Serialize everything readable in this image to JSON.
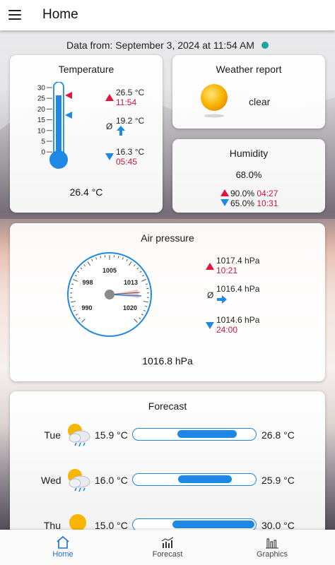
{
  "appbar": {
    "title": "Home",
    "menu_icon": "menu-icon"
  },
  "data_from": {
    "text": "Data from: September 3, 2024 at 11:54 AM",
    "status_color": "#1aa5a0"
  },
  "temperature": {
    "title": "Temperature",
    "current": "26.4 °C",
    "current_value": 26.4,
    "scale_ticks": [
      "30",
      "25",
      "20",
      "15",
      "10",
      "5",
      "0"
    ],
    "high": {
      "value": "26.5 °C",
      "time": "11:54"
    },
    "avg": {
      "symbol": "Ø",
      "value": "19.2 °C"
    },
    "low": {
      "value": "16.3 °C",
      "time": "05:45"
    }
  },
  "weather": {
    "title": "Weather report",
    "condition": "clear",
    "icon": "sun-icon"
  },
  "humidity": {
    "title": "Humidity",
    "current": "68.0%",
    "high": {
      "value": "90.0%",
      "time": "04:27"
    },
    "low": {
      "value": "65.0%",
      "time": "10:31"
    }
  },
  "pressure": {
    "title": "Air pressure",
    "current": "1016.8 hPa",
    "gauge_labels": {
      "top": "1005",
      "left": "998",
      "right": "1013",
      "bottom_left": "990",
      "bottom_right": "1020"
    },
    "high": {
      "value": "1017.4 hPa",
      "time": "10:21"
    },
    "avg": {
      "symbol": "Ø",
      "value": "1016.4 hPa"
    },
    "low": {
      "value": "1014.6 hPa",
      "time": "24:00"
    }
  },
  "forecast": {
    "title": "Forecast",
    "days": [
      {
        "day": "Tue",
        "icon": "cloud-sun-rain-icon",
        "min": "15.9 °C",
        "max": "26.8 °C",
        "min_v": 15.9,
        "max_v": 26.8
      },
      {
        "day": "Wed",
        "icon": "cloud-sun-rain-icon",
        "min": "16.0 °C",
        "max": "25.9 °C",
        "min_v": 16.0,
        "max_v": 25.9
      },
      {
        "day": "Thu",
        "icon": "sun-icon",
        "min": "15.0 °C",
        "max": "30.0 °C",
        "min_v": 15.0,
        "max_v": 30.0
      }
    ]
  },
  "nav": {
    "items": [
      {
        "label": "Home",
        "icon": "home-icon",
        "active": true
      },
      {
        "label": "Forecast",
        "icon": "forecast-chart-icon",
        "active": false
      },
      {
        "label": "Graphics",
        "icon": "bar-chart-icon",
        "active": false
      }
    ]
  },
  "colors": {
    "accent": "#1e88e5",
    "high": "#e0143c",
    "time": "#c8163e"
  }
}
